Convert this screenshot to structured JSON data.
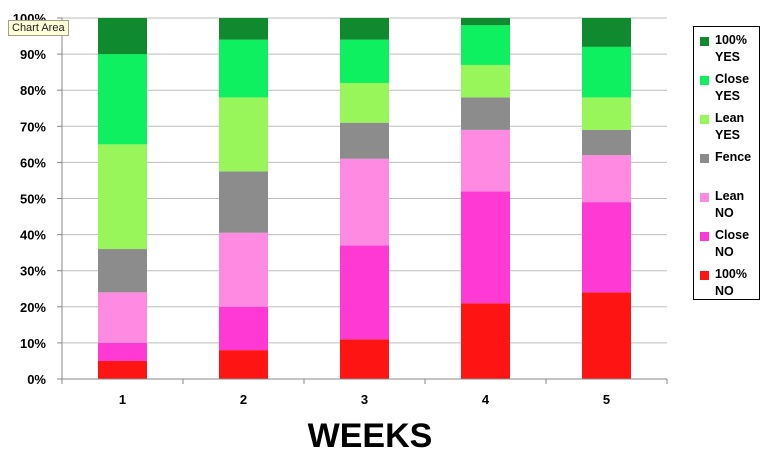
{
  "tooltip": "Chart Area",
  "chart_data": {
    "type": "bar",
    "stacked": true,
    "percent_stacked": true,
    "categories": [
      "1",
      "2",
      "3",
      "4",
      "5"
    ],
    "xlabel": "WEEKS",
    "ylabel": "",
    "ylim": [
      0,
      100
    ],
    "yticks": [
      "0%",
      "10%",
      "20%",
      "30%",
      "40%",
      "50%",
      "60%",
      "70%",
      "80%",
      "90%",
      "100%"
    ],
    "grid": true,
    "legend_position": "right",
    "series": [
      {
        "name": "100% NO",
        "color": "#ff1414",
        "values": [
          5,
          8,
          11,
          21,
          24
        ]
      },
      {
        "name": "Close NO",
        "color": "#ff3ad4",
        "values": [
          5,
          12,
          26,
          31,
          25
        ]
      },
      {
        "name": "Lean NO",
        "color": "#ff8ae2",
        "values": [
          14,
          20.5,
          24,
          17,
          13
        ]
      },
      {
        "name": "Fence",
        "color": "#8c8c8c",
        "values": [
          12,
          17,
          10,
          9,
          7
        ]
      },
      {
        "name": "Lean YES",
        "color": "#99f65a",
        "values": [
          29,
          20.5,
          11,
          9,
          9
        ]
      },
      {
        "name": "Close YES",
        "color": "#0ef060",
        "values": [
          25,
          16,
          12,
          11,
          14
        ]
      },
      {
        "name": "100% YES",
        "color": "#0f8a2f",
        "values": [
          10,
          6,
          6,
          2,
          8
        ]
      }
    ]
  },
  "legend": [
    {
      "label": "100%\nYES",
      "color": "#0f8a2f"
    },
    {
      "label": "Close\nYES",
      "color": "#0ef060"
    },
    {
      "label": "Lean\nYES",
      "color": "#99f65a"
    },
    {
      "label": "Fence",
      "color": "#8c8c8c"
    },
    {
      "label": "Lean\nNO",
      "color": "#ff8ae2"
    },
    {
      "label": "Close\nNO",
      "color": "#ff3ad4"
    },
    {
      "label": "100%\nNO",
      "color": "#ff1414"
    }
  ]
}
